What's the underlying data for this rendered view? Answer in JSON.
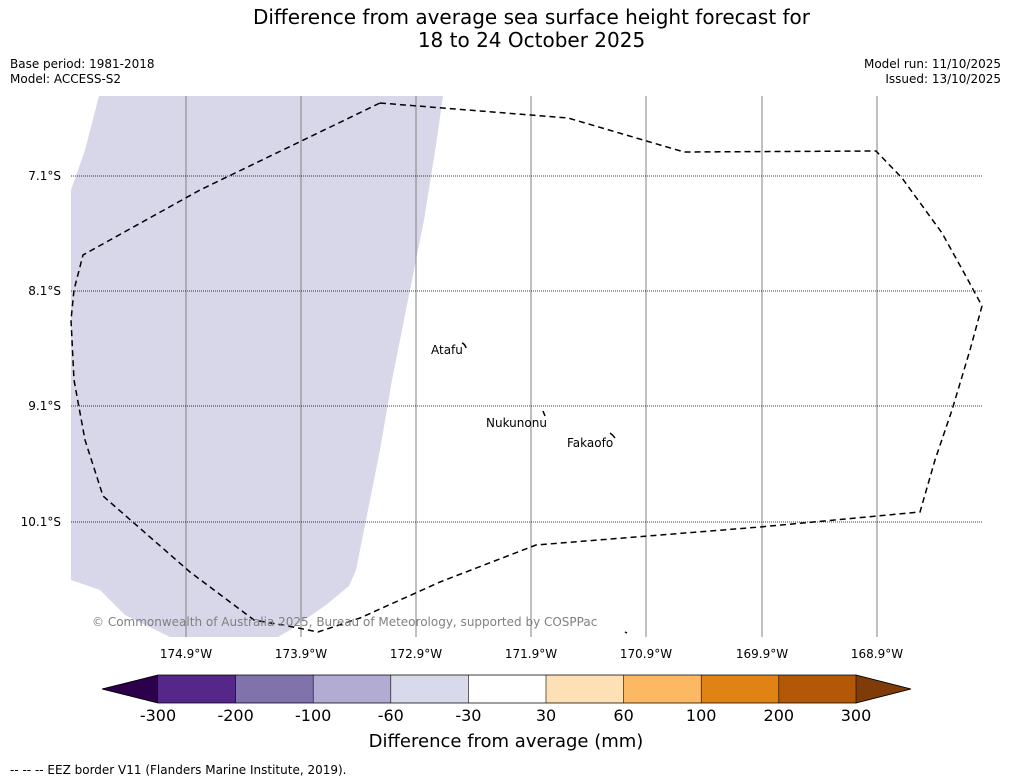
{
  "title": {
    "line1": "Difference from average sea surface height forecast for",
    "line2": "18 to 24 October 2025"
  },
  "meta": {
    "base_period": "Base period: 1981-2018",
    "model": "Model: ACCESS-S2",
    "model_run": "Model run: 11/10/2025",
    "issued": "Issued: 13/10/2025"
  },
  "map": {
    "lat_labels": [
      "7.1°S",
      "8.1°S",
      "9.1°S",
      "10.1°S"
    ],
    "lon_labels": [
      "174.9°W",
      "173.9°W",
      "172.9°W",
      "171.9°W",
      "170.9°W",
      "169.9°W",
      "168.9°W"
    ],
    "places": [
      "Atafu",
      "Nukunonu",
      "Fakaofo"
    ],
    "copyright": "© Commonwealth of Australia 2025, Bureau of Meteorology, supported by COSPPac",
    "anomaly_fill_color": "#d7d7e9"
  },
  "colorbar": {
    "title": "Difference from average (mm)",
    "tick_labels": [
      "-300",
      "-200",
      "-100",
      "-60",
      "-30",
      "30",
      "60",
      "100",
      "200",
      "300"
    ],
    "colors": {
      "under": "#2d004b",
      "bins": [
        "#542788",
        "#8073ac",
        "#b2abd2",
        "#d8daeb",
        "#ffffff",
        "#fee0b6",
        "#fdb863",
        "#e08214",
        "#b35806"
      ],
      "over": "#7f3b08"
    }
  },
  "footer": {
    "note": "--  --  -- EEZ border V11 (Flanders Marine Institute, 2019)."
  }
}
